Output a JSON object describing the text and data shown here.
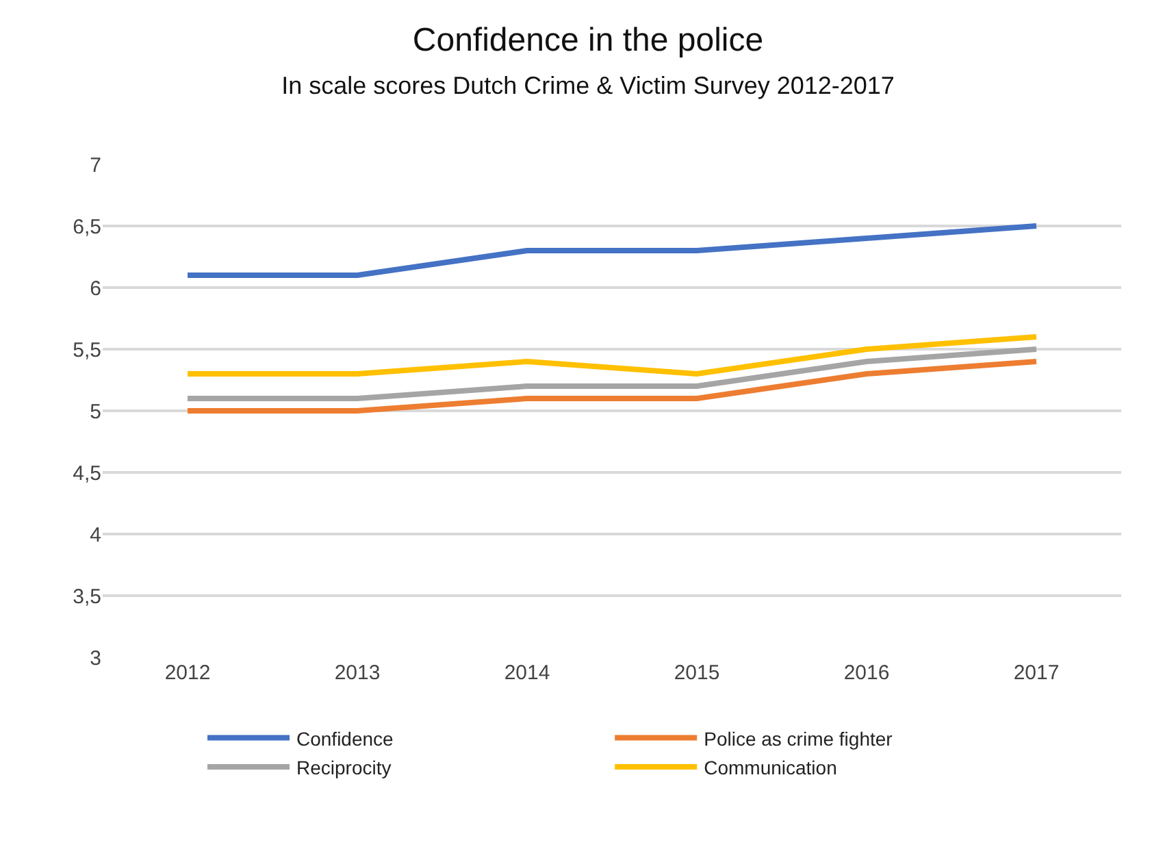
{
  "chart_data": {
    "type": "line",
    "title": "Confidence in the police",
    "subtitle": "In scale scores Dutch Crime & Victim Survey 2012-2017",
    "categories": [
      "2012",
      "2013",
      "2014",
      "2015",
      "2016",
      "2017"
    ],
    "series": [
      {
        "name": "Confidence",
        "color": "#4472c4",
        "values": [
          6.1,
          6.1,
          6.3,
          6.3,
          6.4,
          6.5
        ]
      },
      {
        "name": "Police as crime fighter",
        "color": "#ed7d31",
        "values": [
          5.0,
          5.0,
          5.1,
          5.1,
          5.3,
          5.4
        ]
      },
      {
        "name": "Reciprocity",
        "color": "#a5a5a5",
        "values": [
          5.1,
          5.1,
          5.2,
          5.2,
          5.4,
          5.5
        ]
      },
      {
        "name": "Communication",
        "color": "#ffc000",
        "values": [
          5.3,
          5.3,
          5.4,
          5.3,
          5.5,
          5.6
        ]
      }
    ],
    "ylim": [
      3,
      7
    ],
    "yticks": [
      3,
      {
        "value": 3.5,
        "label": "3,5"
      },
      4,
      {
        "value": 4.5,
        "label": "4,5"
      },
      5,
      {
        "value": 5.5,
        "label": "5,5"
      },
      6,
      {
        "value": 6.5,
        "label": "6,5"
      },
      7
    ],
    "grid": "y",
    "legend": "bottom",
    "marker": "none",
    "line_style": "solid"
  }
}
